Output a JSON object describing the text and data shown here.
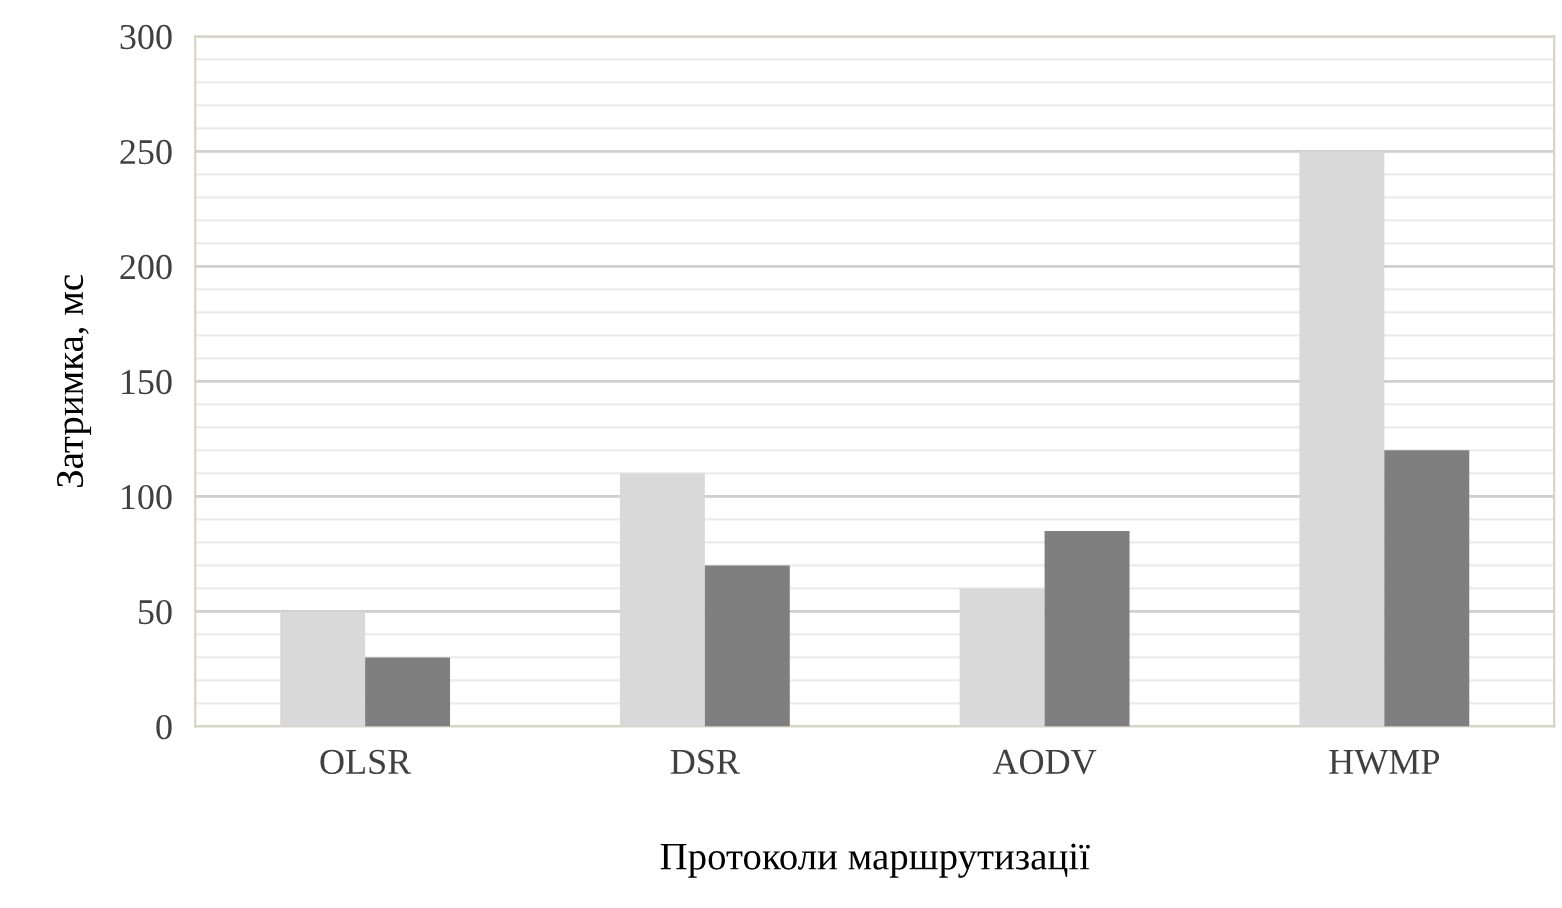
{
  "chart_data": {
    "type": "bar",
    "xlabel": "Протоколи маршрутизації",
    "ylabel": "Затримка, мс",
    "categories": [
      "OLSR",
      "DSR",
      "AODV",
      "HWMP"
    ],
    "series": [
      {
        "color": "#d9d9d9",
        "values": [
          50,
          110,
          60,
          250
        ]
      },
      {
        "color": "#7f7f7f",
        "values": [
          30,
          70,
          85,
          120
        ]
      }
    ],
    "ylim": [
      0,
      300
    ],
    "yticks": [
      0,
      50,
      100,
      150,
      200,
      250,
      300
    ],
    "grid": "y",
    "legend": false
  }
}
